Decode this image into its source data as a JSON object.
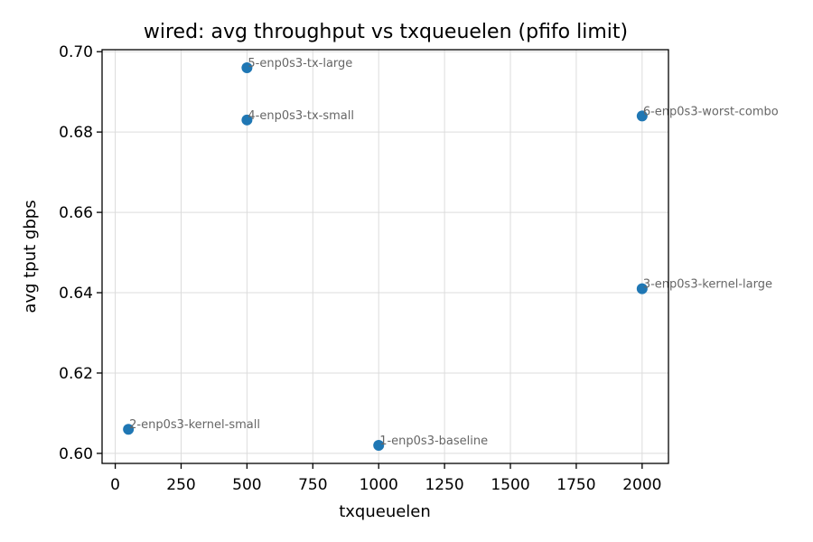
{
  "chart_data": {
    "type": "scatter",
    "title": "wired: avg throughput vs txqueuelen (pfifo limit)",
    "xlabel": "txqueuelen",
    "ylabel": "avg tput gbps",
    "xlim": [
      -50,
      2100
    ],
    "ylim": [
      0.5975,
      0.7005
    ],
    "xticks": [
      0,
      250,
      500,
      750,
      1000,
      1250,
      1500,
      1750,
      2000
    ],
    "xtick_labels": [
      "0",
      "250",
      "500",
      "750",
      "1000",
      "1250",
      "1500",
      "1750",
      "2000"
    ],
    "yticks": [
      0.6,
      0.62,
      0.64,
      0.66,
      0.68,
      0.7
    ],
    "ytick_labels": [
      "0.60",
      "0.62",
      "0.64",
      "0.66",
      "0.68",
      "0.70"
    ],
    "grid": true,
    "point_color": "#1f77b4",
    "label_color": "#666666",
    "points": [
      {
        "label": "1-enp0s3-baseline",
        "x": 1000,
        "y": 0.602
      },
      {
        "label": "2-enp0s3-kernel-small",
        "x": 50,
        "y": 0.606
      },
      {
        "label": "3-enp0s3-kernel-large",
        "x": 2000,
        "y": 0.641
      },
      {
        "label": "4-enp0s3-tx-small",
        "x": 500,
        "y": 0.683
      },
      {
        "label": "5-enp0s3-tx-large",
        "x": 500,
        "y": 0.696
      },
      {
        "label": "6-enp0s3-worst-combo",
        "x": 2000,
        "y": 0.684
      }
    ]
  }
}
